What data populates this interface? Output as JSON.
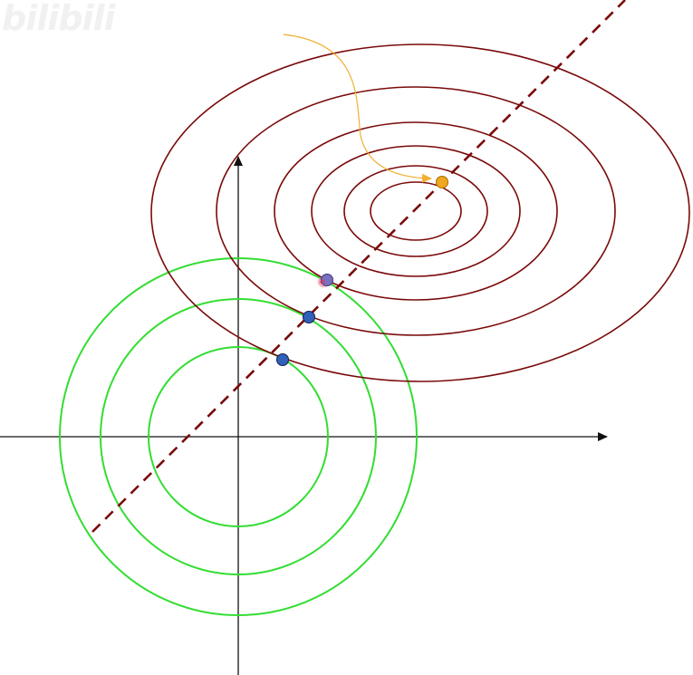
{
  "watermark": {
    "text": "bilibili",
    "icon": "bilibili-logo-icon"
  },
  "colors": {
    "background": "#ffffff",
    "axis": "#111111",
    "loss_contours": "#7a0a0a",
    "regularization_contours": "#33dd33",
    "dashed_path": "#7a0a0a",
    "blue_points": "#3060b8",
    "optimum_point": "#f0a820",
    "arrow_curve": "#f0b030",
    "highlight_point": "#e03050"
  }
}
